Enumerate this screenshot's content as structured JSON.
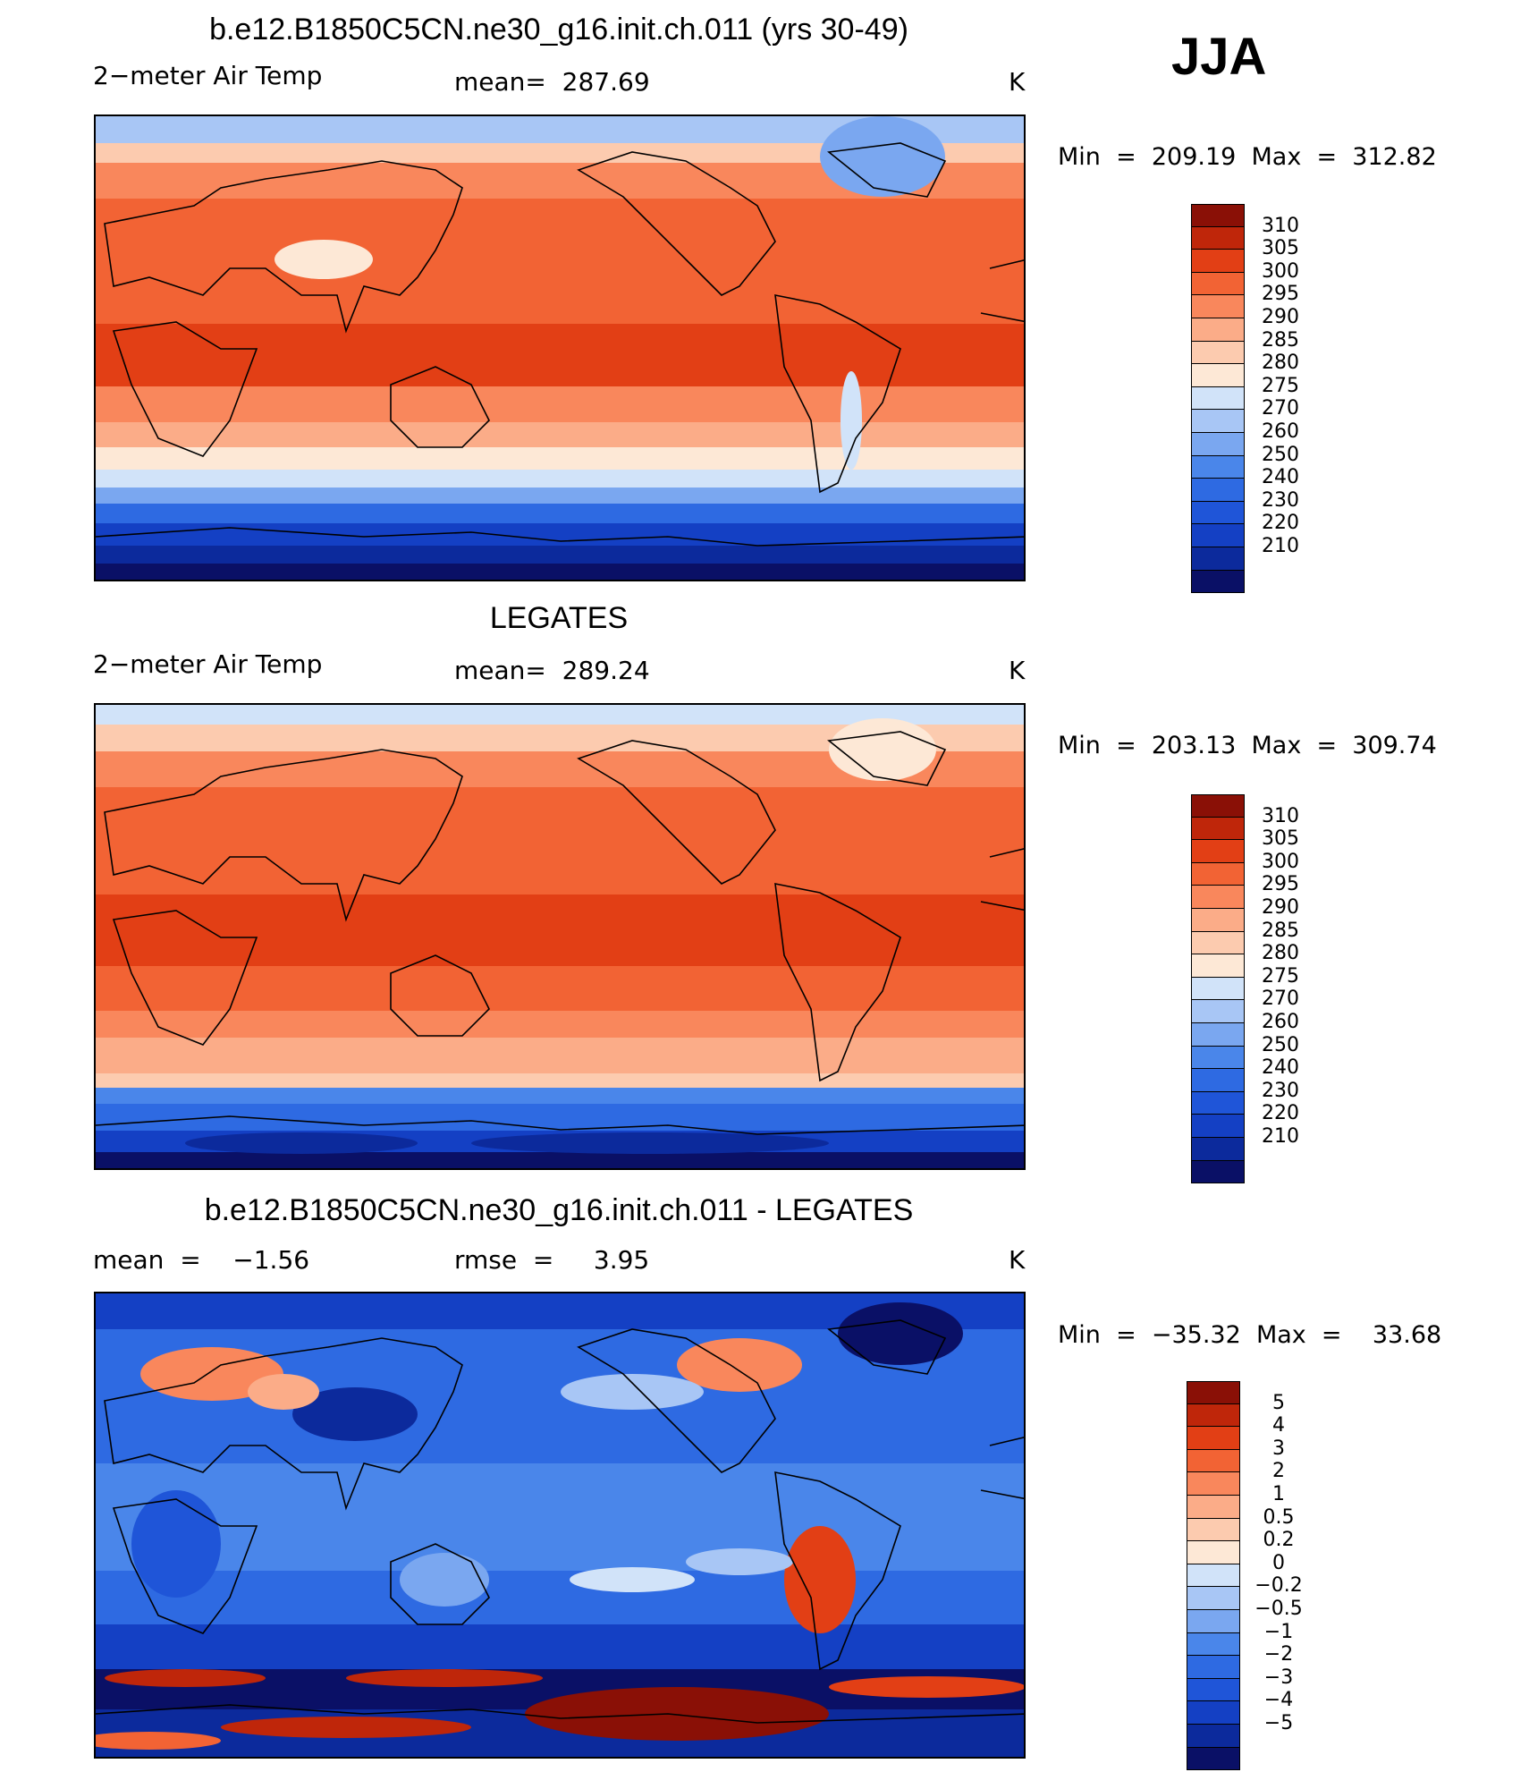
{
  "season": "JJA",
  "palettes": {
    "abs": [
      "#0a1066",
      "#0c2a9c",
      "#1440c4",
      "#1f55d8",
      "#2e6ae2",
      "#4a86ea",
      "#7aa7f0",
      "#a8c6f5",
      "#d1e3f9",
      "#fde8d6",
      "#fccbaf",
      "#fbac88",
      "#f9875c",
      "#f26334",
      "#e23f15",
      "#bf260a",
      "#8a1006"
    ],
    "diff": [
      "#0a1066",
      "#0c2a9c",
      "#1440c4",
      "#1f55d8",
      "#2e6ae2",
      "#4a86ea",
      "#7aa7f0",
      "#a8c6f5",
      "#d1e3f9",
      "#fde8d6",
      "#fccbaf",
      "#fbac88",
      "#f9875c",
      "#f26334",
      "#e23f15",
      "#bf260a",
      "#8a1006"
    ]
  },
  "panels": [
    {
      "title": "b.e12.B1850C5CN.ne30_g16.init.ch.011 (yrs 30-49)",
      "left_label": "2−meter Air Temp",
      "center_label": "mean=  287.69",
      "units": "K",
      "minmax": "Min  =  209.19  Max  =  312.82",
      "palette": "abs",
      "colorbar_labels": [
        "310",
        "305",
        "300",
        "295",
        "290",
        "285",
        "280",
        "275",
        "270",
        "260",
        "250",
        "240",
        "230",
        "220",
        "210"
      ]
    },
    {
      "title": "LEGATES",
      "left_label": "2−meter Air Temp",
      "center_label": "mean=  289.24",
      "units": "K",
      "minmax": "Min  =  203.13  Max  =  309.74",
      "palette": "abs",
      "colorbar_labels": [
        "310",
        "305",
        "300",
        "295",
        "290",
        "285",
        "280",
        "275",
        "270",
        "260",
        "250",
        "240",
        "230",
        "220",
        "210"
      ]
    },
    {
      "title": "b.e12.B1850C5CN.ne30_g16.init.ch.011 - LEGATES",
      "left_label": "mean  =    −1.56",
      "center_label": "rmse  =     3.95",
      "units": "K",
      "minmax": "Min  =  −35.32  Max  =    33.68",
      "palette": "diff",
      "colorbar_labels": [
        "5",
        "4",
        "3",
        "2",
        "1",
        "0.5",
        "0.2",
        "0",
        "−0.2",
        "−0.5",
        "−1",
        "−2",
        "−3",
        "−4",
        "−5"
      ]
    }
  ]
}
